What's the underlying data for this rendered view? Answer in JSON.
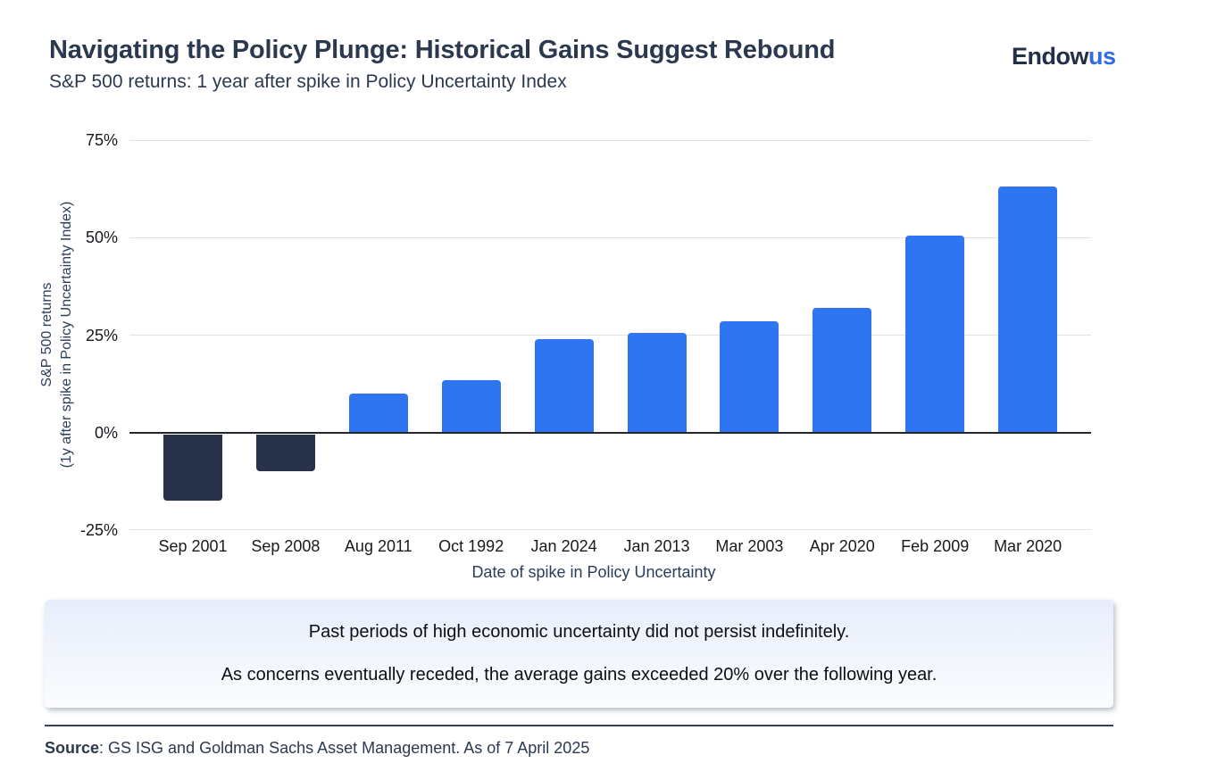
{
  "header": {
    "title": "Navigating the Policy Plunge: Historical Gains Suggest Rebound",
    "subtitle": "S&P 500 returns: 1 year after spike in Policy Uncertainty Index",
    "logo": {
      "part1": "Endow",
      "part2": "us",
      "part1_color": "#232E47",
      "part2_color": "#2D6CE5"
    }
  },
  "chart_data": {
    "type": "bar",
    "categories": [
      "Sep 2001",
      "Sep 2008",
      "Aug 2011",
      "Oct 1992",
      "Jan 2024",
      "Jan 2013",
      "Mar 2003",
      "Apr 2020",
      "Feb 2009",
      "Mar 2020"
    ],
    "values": [
      -17,
      -9.5,
      10,
      13.5,
      24,
      25.5,
      28.5,
      32,
      50.5,
      63
    ],
    "title": "Navigating the Policy Plunge: Historical Gains Suggest Rebound",
    "subtitle": "S&P 500 returns: 1 year after spike in Policy Uncertainty Index",
    "xlabel": "Date of spike in Policy Uncertainty",
    "ylabel_line1": "S&P 500 returns",
    "ylabel_line2": "(1y after spike in Policy Uncertainty Index)",
    "yticks": [
      "75%",
      "50%",
      "25%",
      "0%",
      "-25%"
    ],
    "ylim": [
      -25,
      75
    ],
    "grid": true,
    "legend": "none",
    "positive_color": "#2F74F1",
    "negative_color": "#28324A"
  },
  "callout": {
    "line1": "Past periods of high economic uncertainty did not persist indefinitely.",
    "line2": "As concerns eventually receded, the average gains exceeded 20% over the following year."
  },
  "footer": {
    "source_label": "Source",
    "source_text": ": GS ISG and Goldman Sachs Asset Management. As of 7 April 2025"
  }
}
